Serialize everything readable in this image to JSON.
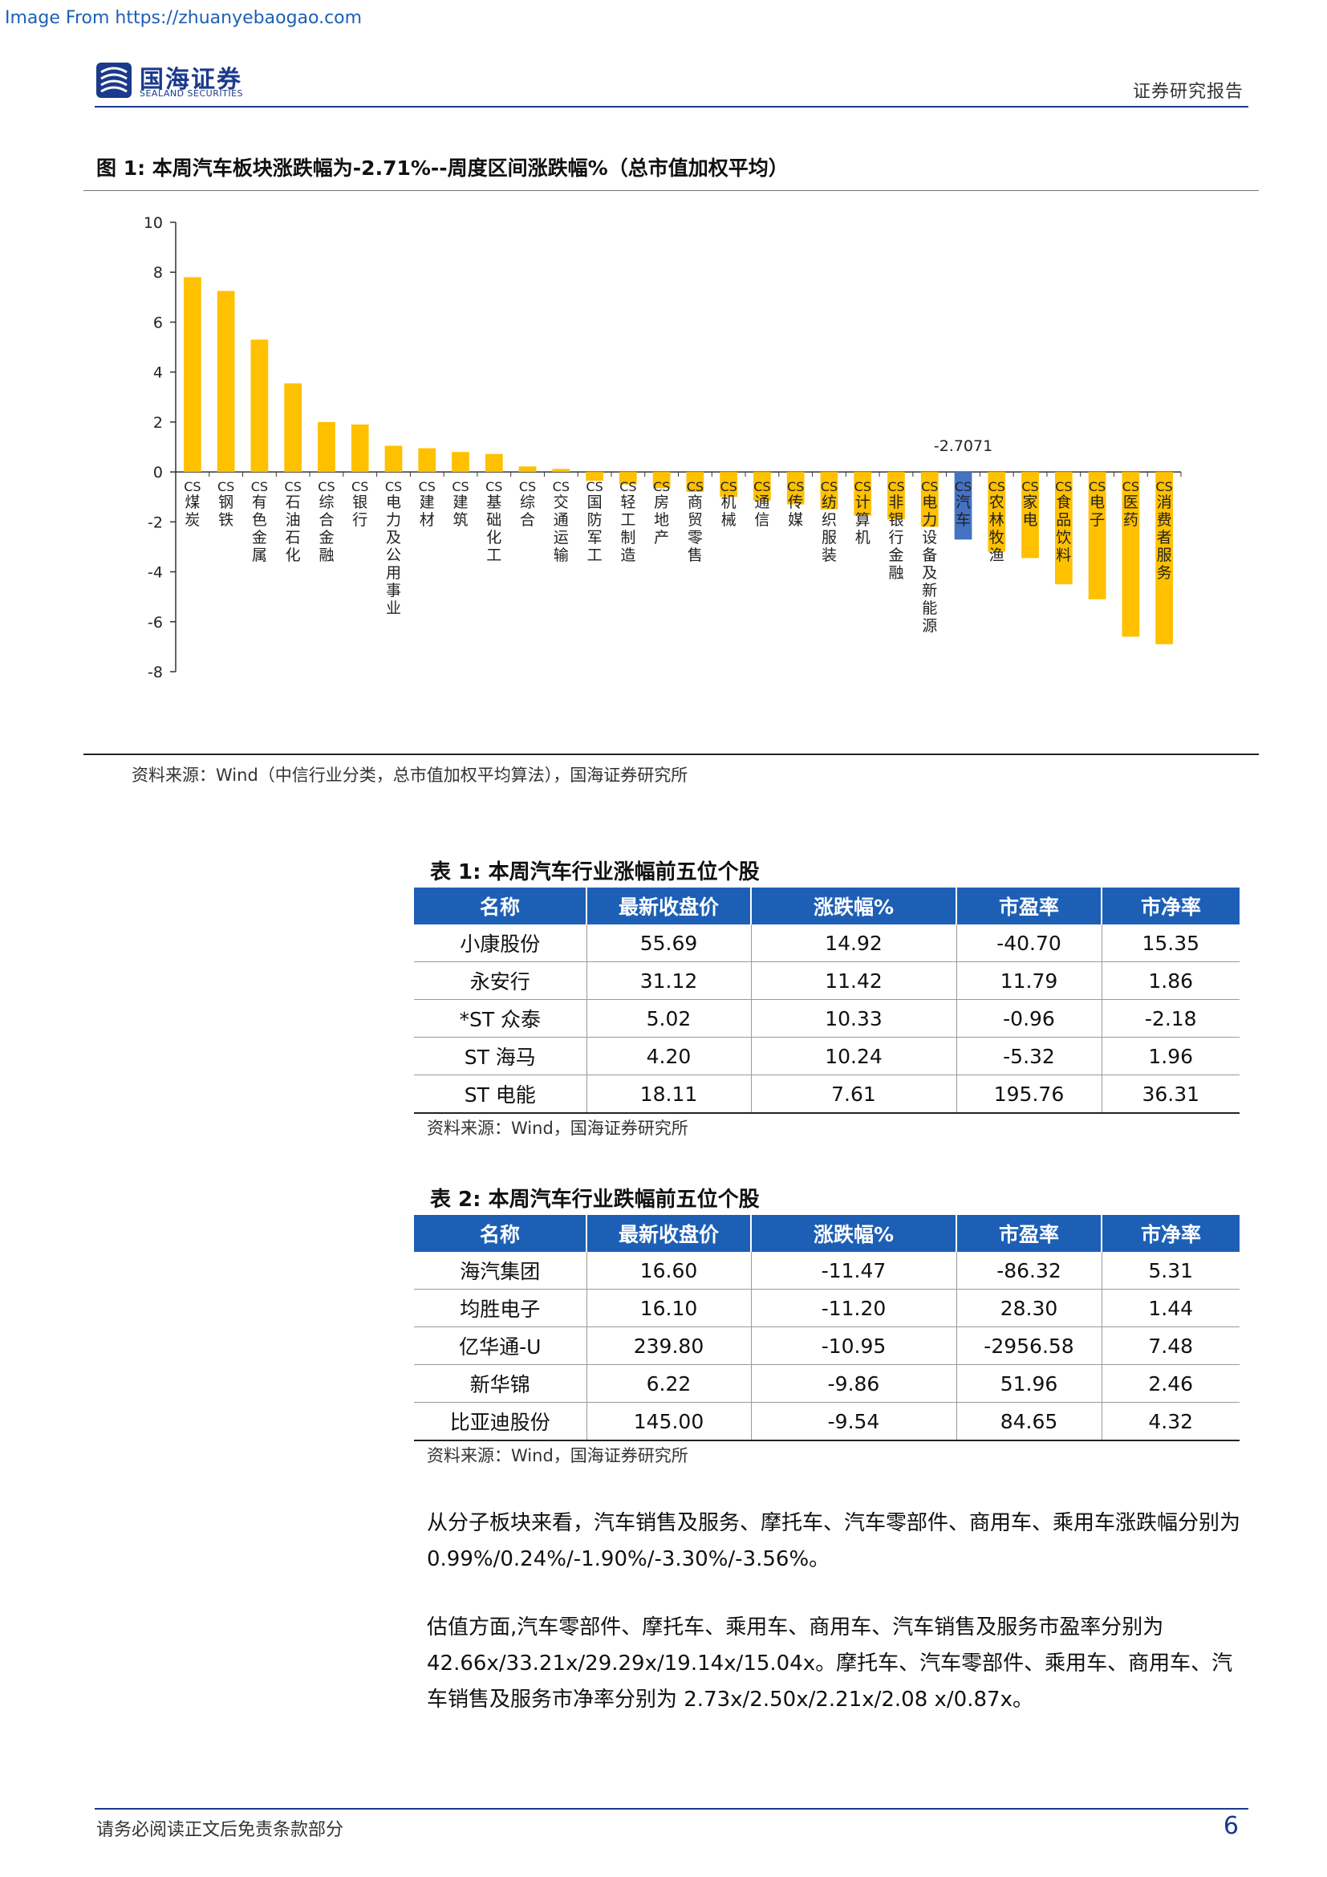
{
  "watermark": "Image From https://zhuanyebaogao.com",
  "header": {
    "logo_cn": "国海证券",
    "logo_en": "SEALAND SECURITIES",
    "report_type": "证券研究报告"
  },
  "figure1": {
    "title": "图 1:  本周汽车板块涨跌幅为-2.71%--周度区间涨跌幅%（总市值加权平均）",
    "source": "资料来源：Wind（中信行业分类，总市值加权平均算法），国海证券研究所"
  },
  "chart_data": {
    "type": "bar",
    "ylim": [
      -8,
      10
    ],
    "yticks": [
      10,
      8,
      6,
      4,
      2,
      0,
      -2,
      -4,
      -6,
      -8
    ],
    "grid": false,
    "legend": "none",
    "highlight_category": "CS汽车",
    "colors": {
      "default": "#FFC000",
      "highlight": "#4472C4"
    },
    "annotations": [
      {
        "category": "CS汽车",
        "text": "-2.7071"
      }
    ],
    "categories": [
      "CS煤炭",
      "CS钢铁",
      "CS有色金属",
      "CS石油石化",
      "CS综合金融",
      "CS银行",
      "CS电力及公用事业",
      "CS建材",
      "CS建筑",
      "CS基础化工",
      "CS综合",
      "CS交通运输",
      "CS国防军工",
      "CS轻工制造",
      "CS房地产",
      "CS商贸零售",
      "CS机械",
      "CS通信",
      "CS传媒",
      "CS纺织服装",
      "CS计算机",
      "CS非银行金融",
      "CS电力设备及新能源",
      "CS汽车",
      "CS农林牧渔",
      "CS家电",
      "CS食品饮料",
      "CS电子",
      "CS医药",
      "CS消费者服务"
    ],
    "values": [
      7.8,
      7.25,
      5.3,
      3.55,
      2.0,
      1.9,
      1.05,
      0.95,
      0.8,
      0.72,
      0.22,
      0.12,
      -0.35,
      -0.5,
      -0.65,
      -0.8,
      -1.0,
      -1.15,
      -1.3,
      -1.5,
      -1.75,
      -1.9,
      -2.2,
      -2.7071,
      -3.2,
      -3.45,
      -4.5,
      -5.1,
      -6.6,
      -6.9
    ]
  },
  "table1": {
    "title": "表 1:  本周汽车行业涨幅前五位个股",
    "headers": [
      "名称",
      "最新收盘价",
      "涨跌幅%",
      "市盈率",
      "市净率"
    ],
    "rows": [
      [
        "小康股份",
        "55.69",
        "14.92",
        "-40.70",
        "15.35"
      ],
      [
        "永安行",
        "31.12",
        "11.42",
        "11.79",
        "1.86"
      ],
      [
        "*ST 众泰",
        "5.02",
        "10.33",
        "-0.96",
        "-2.18"
      ],
      [
        "ST 海马",
        "4.20",
        "10.24",
        "-5.32",
        "1.96"
      ],
      [
        "ST 电能",
        "18.11",
        "7.61",
        "195.76",
        "36.31"
      ]
    ],
    "source": "资料来源：Wind，国海证券研究所"
  },
  "table2": {
    "title": "表 2:  本周汽车行业跌幅前五位个股",
    "headers": [
      "名称",
      "最新收盘价",
      "涨跌幅%",
      "市盈率",
      "市净率"
    ],
    "rows": [
      [
        "海汽集团",
        "16.60",
        "-11.47",
        "-86.32",
        "5.31"
      ],
      [
        "均胜电子",
        "16.10",
        "-11.20",
        "28.30",
        "1.44"
      ],
      [
        "亿华通-U",
        "239.80",
        "-10.95",
        "-2956.58",
        "7.48"
      ],
      [
        "新华锦",
        "6.22",
        "-9.86",
        "51.96",
        "2.46"
      ],
      [
        "比亚迪股份",
        "145.00",
        "-9.54",
        "84.65",
        "4.32"
      ]
    ],
    "source": "资料来源：Wind，国海证券研究所"
  },
  "paragraphs": [
    "从分子板块来看，汽车销售及服务、摩托车、汽车零部件、商用车、乘用车涨跌幅分别为 0.99%/0.24%/-1.90%/-3.30%/-3.56%。",
    "估值方面,汽车零部件、摩托车、乘用车、商用车、汽车销售及服务市盈率分别为 42.66x/33.21x/29.29x/19.14x/15.04x。摩托车、汽车零部件、乘用车、商用车、汽车销售及服务市净率分别为 2.73x/2.50x/2.21x/2.08 x/0.87x。"
  ],
  "footer": {
    "disclaimer": "请务必阅读正文后免责条款部分",
    "page_number": "6"
  }
}
